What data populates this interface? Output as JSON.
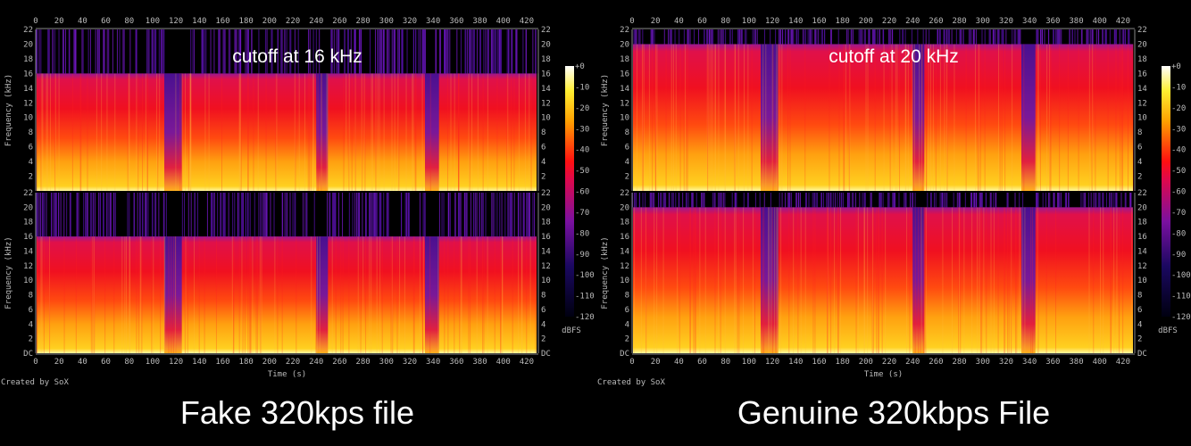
{
  "chart_data": [
    {
      "type": "heatmap",
      "caption": "Fake 320kps file",
      "annotation": "cutoff at 16 kHz",
      "credit": "Created by SoX",
      "xlabel": "Time (s)",
      "ylabel": "Frequency (kHz)",
      "xlim": [
        0,
        430
      ],
      "ylim": [
        0,
        22
      ],
      "x_ticks": [
        "0",
        "20",
        "40",
        "60",
        "80",
        "100",
        "120",
        "140",
        "160",
        "180",
        "200",
        "220",
        "240",
        "260",
        "280",
        "300",
        "320",
        "340",
        "360",
        "380",
        "400",
        "420"
      ],
      "y_ticks": [
        "DC",
        "2",
        "4",
        "6",
        "8",
        "10",
        "12",
        "14",
        "16",
        "18",
        "20",
        "22"
      ],
      "channels": 2,
      "cutoff_khz": 16,
      "quiet_segments_s": [
        [
          110,
          125
        ],
        [
          240,
          250
        ],
        [
          333,
          345
        ]
      ],
      "colorbar": {
        "label": "dBFS",
        "ticks": [
          "+0",
          "-10",
          "-20",
          "-30",
          "-40",
          "-50",
          "-60",
          "-70",
          "-80",
          "-90",
          "-100",
          "-110",
          "-120"
        ],
        "range": [
          -120,
          0
        ]
      }
    },
    {
      "type": "heatmap",
      "caption": "Genuine 320kbps File",
      "annotation": "cutoff at 20 kHz",
      "credit": "Created by SoX",
      "xlabel": "Time (s)",
      "ylabel": "Frequency (kHz)",
      "xlim": [
        0,
        430
      ],
      "ylim": [
        0,
        22
      ],
      "x_ticks": [
        "0",
        "20",
        "40",
        "60",
        "80",
        "100",
        "120",
        "140",
        "160",
        "180",
        "200",
        "220",
        "240",
        "260",
        "280",
        "300",
        "320",
        "340",
        "360",
        "380",
        "400",
        "420"
      ],
      "y_ticks": [
        "DC",
        "2",
        "4",
        "6",
        "8",
        "10",
        "12",
        "14",
        "16",
        "18",
        "20",
        "22"
      ],
      "channels": 2,
      "cutoff_khz": 20,
      "quiet_segments_s": [
        [
          110,
          125
        ],
        [
          240,
          250
        ],
        [
          333,
          345
        ]
      ],
      "colorbar": {
        "label": "dBFS",
        "ticks": [
          "+0",
          "-10",
          "-20",
          "-30",
          "-40",
          "-50",
          "-60",
          "-70",
          "-80",
          "-90",
          "-100",
          "-110",
          "-120"
        ],
        "range": [
          -120,
          0
        ]
      }
    }
  ],
  "colors": {
    "low": "#000010",
    "mid_low": "#6a0a9a",
    "mid": "#ff0c1a",
    "high": "#ffae00",
    "peak": "#ffffe8"
  }
}
